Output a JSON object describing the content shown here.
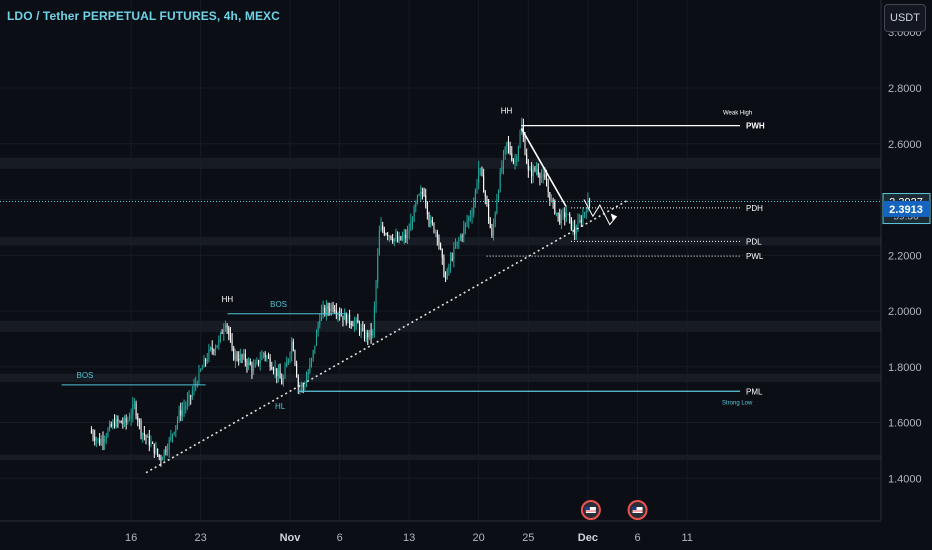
{
  "header": {
    "title": "LDO / Tether PERPETUAL FUTURES, 4h, MEXC",
    "currency": "USDT"
  },
  "chart_data": {
    "type": "candlestick",
    "ylim": [
      1.24,
      3.0
    ],
    "y_ticks": [
      1.4,
      1.6,
      1.8,
      2.0,
      2.2,
      2.4,
      2.6,
      2.8
    ],
    "y_tick_labels": [
      "1.4000",
      "1.6000",
      "1.8000",
      "2.0000",
      "2.2000",
      "2.4000",
      "2.6000",
      "2.8000"
    ],
    "x_ticks": [
      "16",
      "23",
      "Nov",
      "6",
      "13",
      "20",
      "25",
      "Dec",
      "6",
      "11"
    ],
    "x_tick_days": [
      -16,
      -9,
      0,
      5,
      12,
      19,
      24,
      30,
      35,
      40
    ],
    "price_anchors": [
      [
        -20.0,
        1.57
      ],
      [
        -19.0,
        1.53
      ],
      [
        -17.5,
        1.6
      ],
      [
        -16.3,
        1.6
      ],
      [
        -15.5,
        1.66
      ],
      [
        -14.8,
        1.57
      ],
      [
        -13.8,
        1.52
      ],
      [
        -12.9,
        1.47
      ],
      [
        -12.0,
        1.53
      ],
      [
        -11.0,
        1.63
      ],
      [
        -10.0,
        1.68
      ],
      [
        -9.0,
        1.77
      ],
      [
        -8.0,
        1.85
      ],
      [
        -7.0,
        1.89
      ],
      [
        -6.3,
        1.97
      ],
      [
        -5.6,
        1.84
      ],
      [
        -4.5,
        1.83
      ],
      [
        -3.5,
        1.79
      ],
      [
        -2.5,
        1.85
      ],
      [
        -1.5,
        1.8
      ],
      [
        -0.6,
        1.74
      ],
      [
        0.4,
        1.9
      ],
      [
        1.0,
        1.73
      ],
      [
        1.6,
        1.73
      ],
      [
        2.4,
        1.83
      ],
      [
        3.2,
        1.99
      ],
      [
        4.5,
        2.02
      ],
      [
        5.5,
        1.98
      ],
      [
        7.0,
        1.95
      ],
      [
        7.6,
        1.91
      ],
      [
        8.5,
        1.92
      ],
      [
        9.2,
        2.3
      ],
      [
        10.0,
        2.28
      ],
      [
        11.0,
        2.25
      ],
      [
        12.0,
        2.27
      ],
      [
        13.0,
        2.4
      ],
      [
        13.7,
        2.43
      ],
      [
        14.2,
        2.32
      ],
      [
        15.0,
        2.28
      ],
      [
        15.8,
        2.11
      ],
      [
        16.5,
        2.2
      ],
      [
        17.5,
        2.28
      ],
      [
        18.6,
        2.37
      ],
      [
        19.2,
        2.52
      ],
      [
        19.8,
        2.42
      ],
      [
        20.5,
        2.26
      ],
      [
        21.0,
        2.41
      ],
      [
        21.5,
        2.52
      ],
      [
        22.0,
        2.6
      ],
      [
        22.8,
        2.53
      ],
      [
        23.5,
        2.66
      ],
      [
        24.2,
        2.49
      ],
      [
        25.0,
        2.51
      ],
      [
        25.8,
        2.47
      ],
      [
        26.5,
        2.39
      ],
      [
        27.3,
        2.33
      ],
      [
        28.0,
        2.35
      ],
      [
        28.8,
        2.28
      ],
      [
        29.5,
        2.33
      ],
      [
        30.2,
        2.39
      ]
    ],
    "current_price": 2.3927,
    "countdown": "59:36",
    "secondary_price": 2.3913,
    "levels": [
      {
        "label": "PWH",
        "note": "Weak High",
        "price": 2.665,
        "style": "solid"
      },
      {
        "label": "PDH",
        "price": 2.37,
        "style": "dotted"
      },
      {
        "label": "PDL",
        "price": 2.25,
        "style": "dotted"
      },
      {
        "label": "PWL",
        "price": 2.197,
        "style": "dotted"
      },
      {
        "label": "PML",
        "note": "Strong Low",
        "price": 1.712,
        "style": "solid"
      }
    ],
    "annotations": [
      {
        "label": "BOS",
        "price": 1.735,
        "day_from": -23,
        "day_to": -8.5,
        "label_day": -21.5,
        "color": "#4fc3d7"
      },
      {
        "label": "BOS",
        "price": 1.99,
        "day_from": -6.3,
        "day_to": 5.8,
        "label_day": -2.0,
        "color": "#4fc3d7"
      },
      {
        "label": "HH",
        "price": 1.99,
        "day": -6.3,
        "color": "#ffffff"
      },
      {
        "label": "HL",
        "price": 1.71,
        "day": -1.0,
        "color": "#4fc3d7"
      },
      {
        "label": "HH",
        "price": 2.665,
        "day": 21.8,
        "color": "#ffffff"
      }
    ],
    "trendline": {
      "from": [
        -14.5,
        1.42
      ],
      "to": [
        33.9,
        2.395
      ]
    },
    "triangle_line": {
      "from": [
        23.3,
        2.655
      ],
      "to": [
        27.8,
        2.375
      ]
    },
    "zones": [
      {
        "from": 2.51,
        "to": 2.55
      },
      {
        "from": 2.235,
        "to": 2.265
      },
      {
        "from": 1.925,
        "to": 1.965
      },
      {
        "from": 1.745,
        "to": 1.775
      },
      {
        "from": 1.465,
        "to": 1.485
      }
    ],
    "events_days": [
      30.3,
      35.0
    ],
    "colors": {
      "up": "#26a69a",
      "down": "#ffffff",
      "bg": "#0b0e14",
      "grid": "#171b24",
      "trend": "#e0e0e0",
      "accent": "#5ec9dd"
    }
  }
}
